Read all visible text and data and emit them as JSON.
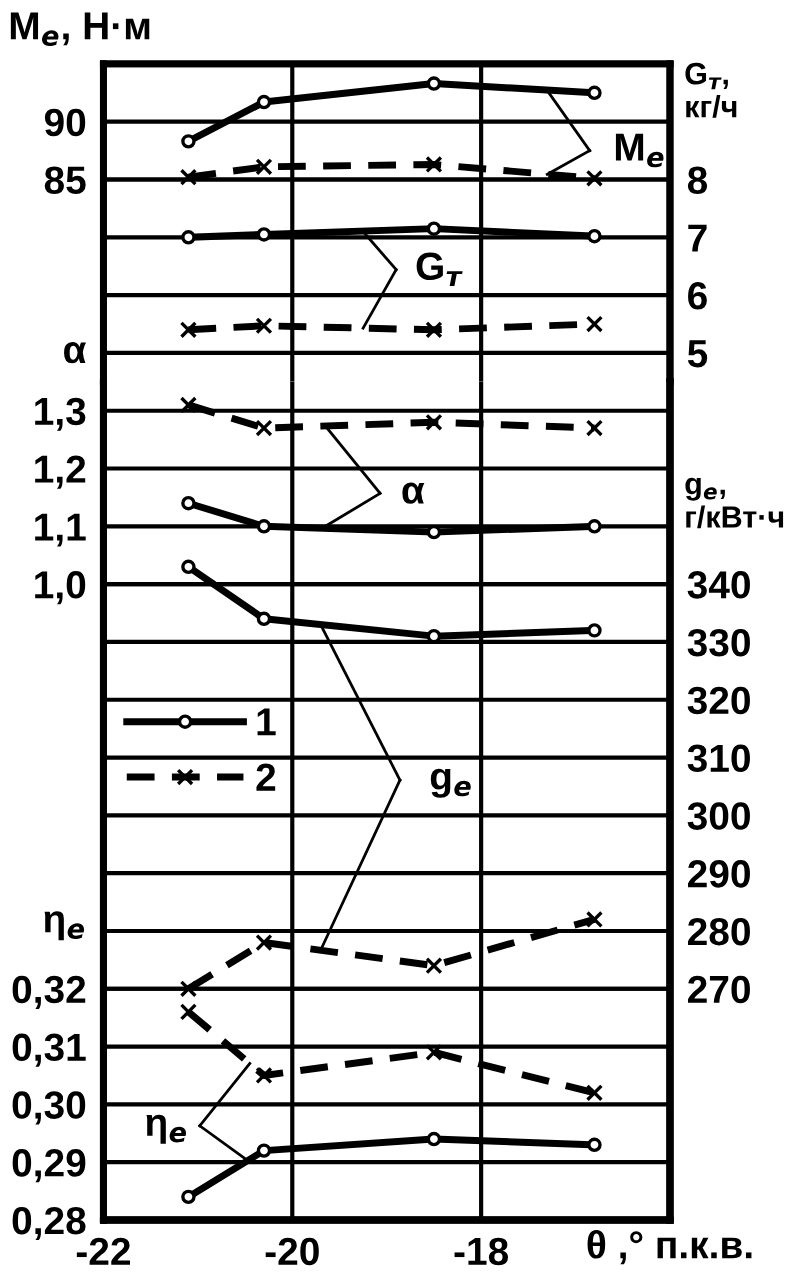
{
  "chart_data": [
    {
      "type": "line",
      "ylabel": "M$_{e}$, Н·м",
      "y2label": "G$_{т}$, кг/ч",
      "tick_labels": "y",
      "x": [
        -21.1,
        -20.3,
        -18.5,
        -16.8
      ],
      "series": [
        {
          "color": "#000000",
          "marker": "circle",
          "line_style": "solid",
          "values": [
            88.3,
            91.7,
            93.3,
            92.5
          ]
        },
        {
          "color": "#000000",
          "marker": "cross",
          "line_style": "dashed",
          "values": [
            85.2,
            86.1,
            86.3,
            85.1
          ]
        },
        {
          "axis": "y2",
          "color": "#000000",
          "marker": "circle",
          "line_style": "solid",
          "values": [
            7.0,
            7.05,
            7.15,
            7.02
          ]
        },
        {
          "axis": "y2",
          "color": "#000000",
          "marker": "cross",
          "line_style": "dashed",
          "values": [
            5.4,
            5.47,
            5.4,
            5.5
          ]
        }
      ],
      "xlim": [
        -22,
        -16
      ],
      "xticks": [
        -22,
        -20,
        -18
      ],
      "ylim": [
        67.5,
        95
      ],
      "yticks": [
        85,
        90
      ],
      "y2lim": [
        4.5,
        10
      ],
      "y2ticks": [
        5,
        6,
        7,
        8
      ],
      "annotations": [
        {
          "text": "M$_{e}$",
          "x": -17.3,
          "y": 92.7
        },
        {
          "text": "G$_{т}$",
          "x": -19.25,
          "y": 80.5
        }
      ],
      "grid": true
    },
    {
      "type": "line",
      "xlabel": "θ ,° п.к.в.",
      "ylabel": "η$_{e}$",
      "y2label": "g$_{e}$, г/кВт·ч",
      "y3label": "α",
      "x": [
        -21.1,
        -20.3,
        -18.5,
        -16.8
      ],
      "series": [
        {
          "axis": "y3",
          "color": "#000000",
          "marker": "circle",
          "line_style": "solid",
          "values": [
            1.14,
            1.1,
            1.09,
            1.1
          ]
        },
        {
          "axis": "y3",
          "color": "#000000",
          "marker": "cross",
          "line_style": "dashed",
          "values": [
            1.31,
            1.27,
            1.28,
            1.27
          ]
        },
        {
          "name": "1",
          "axis": "y2",
          "color": "#000000",
          "marker": "circle",
          "line_style": "solid",
          "values": [
            343,
            334,
            331,
            332
          ]
        },
        {
          "name": "2",
          "axis": "y2",
          "color": "#000000",
          "marker": "cross",
          "line_style": "dashed",
          "values": [
            270,
            278,
            274,
            282
          ]
        },
        {
          "color": "#000000",
          "marker": "circle",
          "line_style": "solid",
          "values": [
            0.284,
            0.292,
            0.294,
            0.293
          ]
        },
        {
          "color": "#000000",
          "marker": "cross",
          "line_style": "dashed",
          "values": [
            0.316,
            0.305,
            0.309,
            0.302
          ]
        }
      ],
      "xlim": [
        -22,
        -16
      ],
      "xticks": [
        -22,
        -20,
        -18
      ],
      "ylim": [
        0.28,
        0.425
      ],
      "yticks": [
        {
          "value": 0.28,
          "label": "0,28"
        },
        {
          "value": 0.29,
          "label": "0,29"
        },
        {
          "value": 0.3,
          "label": "0,30"
        },
        {
          "value": 0.31,
          "label": "0,31"
        },
        {
          "value": 0.32,
          "label": "0,32"
        }
      ],
      "y2lim": [
        230,
        375
      ],
      "y2ticks": [
        270,
        280,
        290,
        300,
        310,
        320,
        330,
        340
      ],
      "y3lim": [
        -0.1,
        1.35
      ],
      "y3ticks": [
        {
          "value": 1.0,
          "label": "1,0"
        },
        {
          "value": 1.1,
          "label": "1,1"
        },
        {
          "value": 1.2,
          "label": "1,2"
        },
        {
          "value": 1.3,
          "label": "1,3"
        }
      ],
      "annotations": [
        {
          "text": "α",
          "x": -19.65,
          "y": 0.4
        },
        {
          "text": "g$_{e}$",
          "x": -19.7,
          "y": 0.383
        },
        {
          "text": "η$_{e}$",
          "x": -20.45,
          "y": 0.29
        }
      ],
      "grid": true,
      "legend": "center left"
    }
  ]
}
